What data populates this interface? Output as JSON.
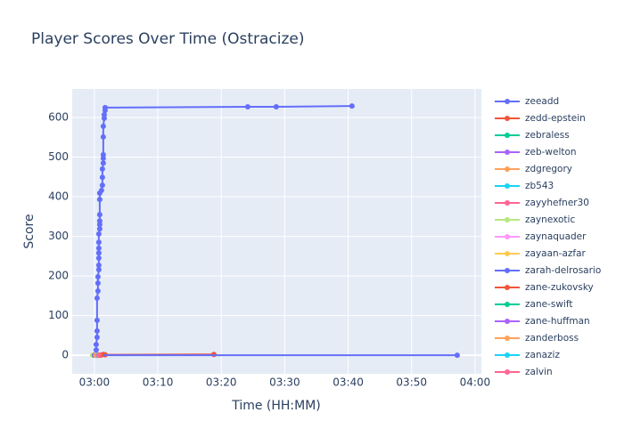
{
  "chart_data": {
    "type": "line",
    "title": "Player Scores Over Time (Ostracize)",
    "x_label": "Time (HH:MM)",
    "y_label": "Score",
    "xlim": [
      176.5,
      241.0
    ],
    "ylim": [
      -47,
      672
    ],
    "xticks": [
      {
        "value": 180,
        "label": "03:00"
      },
      {
        "value": 190,
        "label": "03:10"
      },
      {
        "value": 200,
        "label": "03:20"
      },
      {
        "value": 210,
        "label": "03:30"
      },
      {
        "value": 220,
        "label": "03:40"
      },
      {
        "value": 230,
        "label": "03:50"
      },
      {
        "value": 240,
        "label": "04:00"
      }
    ],
    "yticks": [
      0,
      100,
      200,
      300,
      400,
      500,
      600
    ],
    "grid": true,
    "series": [
      {
        "name": "zeeadd",
        "color": "#636efa",
        "x": [
          180.14,
          180.28,
          180.28,
          180.42,
          180.42,
          180.42,
          180.42,
          180.56,
          180.56,
          180.56,
          180.7,
          180.7,
          180.7,
          180.7,
          180.7,
          180.7,
          180.7,
          180.84,
          180.84,
          180.84,
          180.84,
          180.84,
          180.84,
          181.12,
          181.26,
          181.26,
          181.26,
          181.4,
          181.4,
          181.4,
          181.4,
          181.4,
          181.55,
          181.55,
          181.69,
          181.69,
          204.17,
          208.66,
          220.6
        ],
        "values": [
          0,
          13,
          27,
          45,
          61,
          88,
          144,
          162,
          182,
          198,
          216,
          227,
          245,
          258,
          270,
          285,
          306,
          319,
          330,
          339,
          355,
          393,
          409,
          416,
          429,
          449,
          470,
          485,
          497,
          506,
          551,
          578,
          598,
          607,
          618,
          625,
          627,
          627,
          629
        ]
      },
      {
        "name": "zedd-epstein",
        "color": "#EF553B",
        "x": [
          180.84,
          181.4,
          181.69,
          198.83
        ],
        "values": [
          0,
          2,
          1,
          2
        ]
      },
      {
        "name": "zebraless",
        "color": "#00cc96",
        "x": [
          180.3
        ],
        "values": [
          0
        ]
      },
      {
        "name": "zeb-welton",
        "color": "#ab63fa",
        "x": [
          180.4
        ],
        "values": [
          0
        ]
      },
      {
        "name": "zdgregory",
        "color": "#FFA15A",
        "x": [
          180.2
        ],
        "values": [
          0
        ]
      },
      {
        "name": "zb543",
        "color": "#19d3f3",
        "x": [
          180.5
        ],
        "values": [
          0
        ]
      },
      {
        "name": "zayyhefner30",
        "color": "#FF6692",
        "x": [
          180.6
        ],
        "values": [
          0
        ]
      },
      {
        "name": "zaynexotic",
        "color": "#B6E880",
        "x": [
          179.7
        ],
        "values": [
          0
        ]
      },
      {
        "name": "zaynaquader",
        "color": "#FF97FF",
        "x": [
          180.3
        ],
        "values": [
          0
        ]
      },
      {
        "name": "zayaan-azfar",
        "color": "#FECB52",
        "x": [
          179.9
        ],
        "values": [
          0
        ]
      },
      {
        "name": "zarah-delrosario",
        "color": "#636efa",
        "x": [
          180.0,
          237.19
        ],
        "values": [
          0,
          0
        ]
      },
      {
        "name": "zane-zukovsky",
        "color": "#EF553B",
        "x": [
          181.0
        ],
        "values": [
          0
        ]
      },
      {
        "name": "zane-swift",
        "color": "#00cc96",
        "x": [
          180.4
        ],
        "values": [
          0
        ]
      },
      {
        "name": "zane-huffman",
        "color": "#ab63fa",
        "x": [
          180.5
        ],
        "values": [
          0
        ]
      },
      {
        "name": "zanderboss",
        "color": "#FFA15A",
        "x": [
          180.2
        ],
        "values": [
          0
        ]
      },
      {
        "name": "zanaziz",
        "color": "#19d3f3",
        "x": [
          180.6
        ],
        "values": [
          0
        ]
      },
      {
        "name": "zalvin",
        "color": "#FF6692",
        "x": [
          180.7
        ],
        "values": [
          0
        ]
      }
    ]
  }
}
